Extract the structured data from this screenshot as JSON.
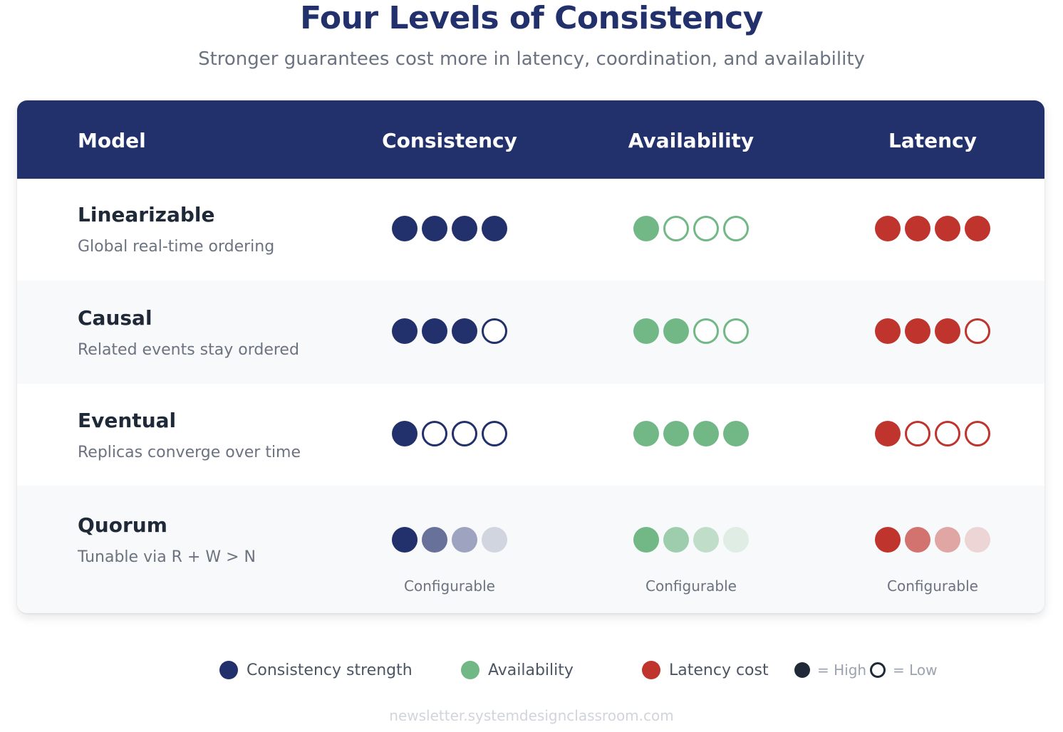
{
  "header": {
    "title": "Four Levels of Consistency",
    "subtitle": "Stronger guarantees cost more in latency, coordination, and availability"
  },
  "table": {
    "columns": [
      "Model",
      "Consistency",
      "Availability",
      "Latency"
    ],
    "rows": [
      {
        "name": "Linearizable",
        "description": "Global real-time ordering",
        "consistency": 4,
        "availability": 1,
        "latency": 4
      },
      {
        "name": "Causal",
        "description": "Related events stay ordered",
        "consistency": 3,
        "availability": 2,
        "latency": 3
      },
      {
        "name": "Eventual",
        "description": "Replicas converge over time",
        "consistency": 1,
        "availability": 4,
        "latency": 1
      },
      {
        "name": "Quorum",
        "description": "Tunable via R + W > N",
        "configurable": true,
        "configurable_label": "Configurable"
      }
    ]
  },
  "colors": {
    "consistency": "#22306b",
    "availability": "#72b886",
    "latency": "#bf342c",
    "header_bg": "#22306b"
  },
  "legend": {
    "items": [
      {
        "label": "Consistency strength",
        "color": "#22306b"
      },
      {
        "label": "Availability",
        "color": "#72b886"
      },
      {
        "label": "Latency cost",
        "color": "#bf342c"
      }
    ],
    "high_label": "= High",
    "low_label": "= Low"
  },
  "footer": {
    "text": "newsletter.systemdesignclassroom.com"
  }
}
